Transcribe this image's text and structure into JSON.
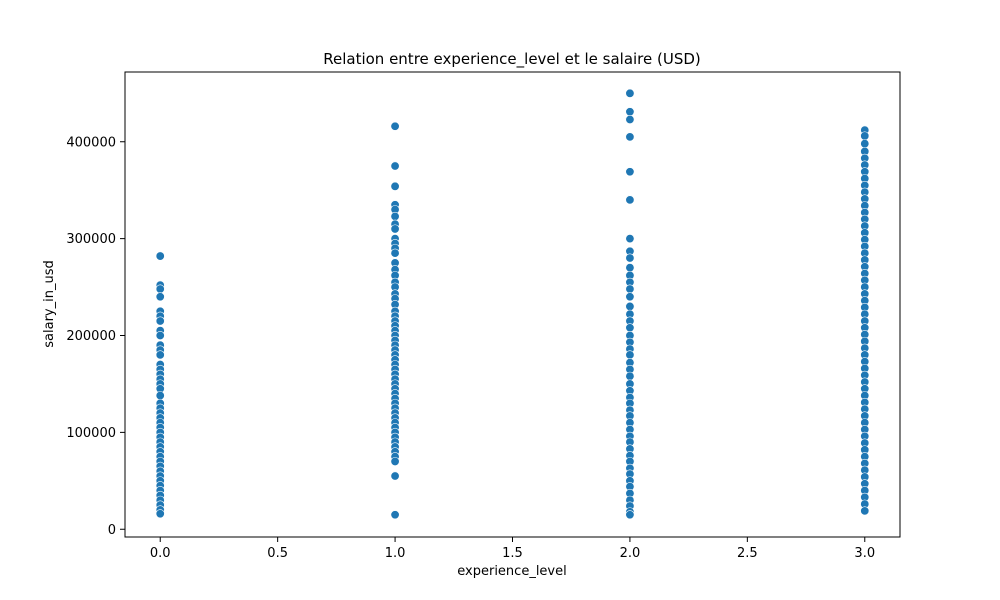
{
  "chart_data": {
    "type": "scatter",
    "title": "Relation entre experience_level et le salaire (USD)",
    "xlabel": "experience_level",
    "ylabel": "salary_in_usd",
    "xlim": [
      -0.15,
      3.15
    ],
    "ylim": [
      -8000,
      472000
    ],
    "x_ticks": [
      0.0,
      0.5,
      1.0,
      1.5,
      2.0,
      2.5,
      3.0
    ],
    "x_tick_labels": [
      "0.0",
      "0.5",
      "1.0",
      "1.5",
      "2.0",
      "2.5",
      "3.0"
    ],
    "y_ticks": [
      0,
      100000,
      200000,
      300000,
      400000
    ],
    "y_tick_labels": [
      "0",
      "100000",
      "200000",
      "300000",
      "400000"
    ],
    "grid": false,
    "marker_color": "#1f77b4",
    "marker_edge_color": "#ffffff",
    "series": [
      {
        "points": [
          [
            0,
            282000
          ],
          [
            0,
            252000
          ],
          [
            0,
            248000
          ],
          [
            0,
            240000
          ],
          [
            0,
            225000
          ],
          [
            0,
            220000
          ],
          [
            0,
            215000
          ],
          [
            0,
            205000
          ],
          [
            0,
            200000
          ],
          [
            0,
            190000
          ],
          [
            0,
            185000
          ],
          [
            0,
            180000
          ],
          [
            0,
            170000
          ],
          [
            0,
            165000
          ],
          [
            0,
            160000
          ],
          [
            0,
            155000
          ],
          [
            0,
            150000
          ],
          [
            0,
            145000
          ],
          [
            0,
            138000
          ],
          [
            0,
            130000
          ],
          [
            0,
            125000
          ],
          [
            0,
            120000
          ],
          [
            0,
            115000
          ],
          [
            0,
            110000
          ],
          [
            0,
            105000
          ],
          [
            0,
            100000
          ],
          [
            0,
            95000
          ],
          [
            0,
            90000
          ],
          [
            0,
            85000
          ],
          [
            0,
            80000
          ],
          [
            0,
            75000
          ],
          [
            0,
            70000
          ],
          [
            0,
            65000
          ],
          [
            0,
            60000
          ],
          [
            0,
            55000
          ],
          [
            0,
            50000
          ],
          [
            0,
            45000
          ],
          [
            0,
            40000
          ],
          [
            0,
            35000
          ],
          [
            0,
            30000
          ],
          [
            0,
            25000
          ],
          [
            0,
            20000
          ],
          [
            0,
            16000
          ],
          [
            1,
            416000
          ],
          [
            1,
            375000
          ],
          [
            1,
            354000
          ],
          [
            1,
            335000
          ],
          [
            1,
            330000
          ],
          [
            1,
            323000
          ],
          [
            1,
            315000
          ],
          [
            1,
            310000
          ],
          [
            1,
            300000
          ],
          [
            1,
            295000
          ],
          [
            1,
            290000
          ],
          [
            1,
            285000
          ],
          [
            1,
            275000
          ],
          [
            1,
            268000
          ],
          [
            1,
            262000
          ],
          [
            1,
            255000
          ],
          [
            1,
            250000
          ],
          [
            1,
            243000
          ],
          [
            1,
            238000
          ],
          [
            1,
            232000
          ],
          [
            1,
            225000
          ],
          [
            1,
            220000
          ],
          [
            1,
            215000
          ],
          [
            1,
            210000
          ],
          [
            1,
            205000
          ],
          [
            1,
            200000
          ],
          [
            1,
            195000
          ],
          [
            1,
            190000
          ],
          [
            1,
            185000
          ],
          [
            1,
            180000
          ],
          [
            1,
            175000
          ],
          [
            1,
            170000
          ],
          [
            1,
            165000
          ],
          [
            1,
            160000
          ],
          [
            1,
            155000
          ],
          [
            1,
            150000
          ],
          [
            1,
            145000
          ],
          [
            1,
            140000
          ],
          [
            1,
            135000
          ],
          [
            1,
            130000
          ],
          [
            1,
            125000
          ],
          [
            1,
            120000
          ],
          [
            1,
            115000
          ],
          [
            1,
            110000
          ],
          [
            1,
            105000
          ],
          [
            1,
            100000
          ],
          [
            1,
            95000
          ],
          [
            1,
            90000
          ],
          [
            1,
            85000
          ],
          [
            1,
            80000
          ],
          [
            1,
            75000
          ],
          [
            1,
            70000
          ],
          [
            1,
            55000
          ],
          [
            1,
            15000
          ],
          [
            2,
            450000
          ],
          [
            2,
            431000
          ],
          [
            2,
            423000
          ],
          [
            2,
            405000
          ],
          [
            2,
            369000
          ],
          [
            2,
            340000
          ],
          [
            2,
            300000
          ],
          [
            2,
            287000
          ],
          [
            2,
            280000
          ],
          [
            2,
            270000
          ],
          [
            2,
            262000
          ],
          [
            2,
            255000
          ],
          [
            2,
            248000
          ],
          [
            2,
            240000
          ],
          [
            2,
            230000
          ],
          [
            2,
            222000
          ],
          [
            2,
            215000
          ],
          [
            2,
            208000
          ],
          [
            2,
            200000
          ],
          [
            2,
            193000
          ],
          [
            2,
            186000
          ],
          [
            2,
            180000
          ],
          [
            2,
            172000
          ],
          [
            2,
            165000
          ],
          [
            2,
            158000
          ],
          [
            2,
            150000
          ],
          [
            2,
            143000
          ],
          [
            2,
            136000
          ],
          [
            2,
            130000
          ],
          [
            2,
            123000
          ],
          [
            2,
            117000
          ],
          [
            2,
            110000
          ],
          [
            2,
            103000
          ],
          [
            2,
            96000
          ],
          [
            2,
            90000
          ],
          [
            2,
            83000
          ],
          [
            2,
            76000
          ],
          [
            2,
            70000
          ],
          [
            2,
            63000
          ],
          [
            2,
            57000
          ],
          [
            2,
            50000
          ],
          [
            2,
            44000
          ],
          [
            2,
            37000
          ],
          [
            2,
            30000
          ],
          [
            2,
            24000
          ],
          [
            2,
            18000
          ],
          [
            2,
            15000
          ],
          [
            3,
            412000
          ],
          [
            3,
            406000
          ],
          [
            3,
            398000
          ],
          [
            3,
            390000
          ],
          [
            3,
            383000
          ],
          [
            3,
            376000
          ],
          [
            3,
            369000
          ],
          [
            3,
            362000
          ],
          [
            3,
            355000
          ],
          [
            3,
            348000
          ],
          [
            3,
            341000
          ],
          [
            3,
            334000
          ],
          [
            3,
            327000
          ],
          [
            3,
            320000
          ],
          [
            3,
            313000
          ],
          [
            3,
            306000
          ],
          [
            3,
            299000
          ],
          [
            3,
            292000
          ],
          [
            3,
            285000
          ],
          [
            3,
            278000
          ],
          [
            3,
            271000
          ],
          [
            3,
            264000
          ],
          [
            3,
            257000
          ],
          [
            3,
            250000
          ],
          [
            3,
            243000
          ],
          [
            3,
            236000
          ],
          [
            3,
            229000
          ],
          [
            3,
            222000
          ],
          [
            3,
            215000
          ],
          [
            3,
            208000
          ],
          [
            3,
            201000
          ],
          [
            3,
            194000
          ],
          [
            3,
            187000
          ],
          [
            3,
            180000
          ],
          [
            3,
            173000
          ],
          [
            3,
            166000
          ],
          [
            3,
            159000
          ],
          [
            3,
            152000
          ],
          [
            3,
            145000
          ],
          [
            3,
            138000
          ],
          [
            3,
            131000
          ],
          [
            3,
            124000
          ],
          [
            3,
            117000
          ],
          [
            3,
            110000
          ],
          [
            3,
            103000
          ],
          [
            3,
            96000
          ],
          [
            3,
            89000
          ],
          [
            3,
            82000
          ],
          [
            3,
            75000
          ],
          [
            3,
            68000
          ],
          [
            3,
            61000
          ],
          [
            3,
            54000
          ],
          [
            3,
            47000
          ],
          [
            3,
            40000
          ],
          [
            3,
            33000
          ],
          [
            3,
            26000
          ],
          [
            3,
            19000
          ]
        ]
      }
    ]
  }
}
